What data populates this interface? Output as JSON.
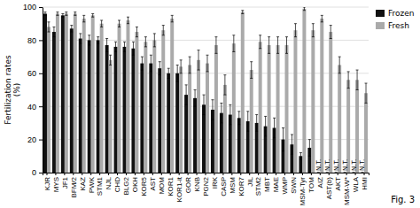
{
  "chart_data": {
    "type": "bar",
    "ylabel": "Fertilization rates\n(%)",
    "categories": [
      "KJR",
      "MYS",
      "JF1",
      "BFM/2",
      "KAZ",
      "PWK",
      "STM1",
      "NJL",
      "CHD",
      "BLG2",
      "OKH",
      "KOR5",
      "AST",
      "MOM",
      "KOR1",
      "KOR1-it",
      "GOR",
      "KNB",
      "PGN2",
      "IRK",
      "CASP",
      "MSM",
      "KOR7",
      "JIL",
      "STM2",
      "MBT",
      "MAE",
      "WMP",
      "SWN",
      "MSM-Tyr",
      "TOM",
      "AIZ",
      "AST(b)",
      "AKT",
      "MSM-W*",
      "WLA",
      "HMI"
    ],
    "series": [
      {
        "name": "Frozen",
        "color": "#111111",
        "values": [
          96,
          85,
          95,
          87,
          81,
          80,
          80,
          77,
          76,
          76,
          75,
          66,
          66,
          63,
          60,
          60,
          47,
          45,
          41,
          38,
          36,
          35,
          33,
          31,
          30,
          28,
          27,
          20,
          17,
          10,
          15,
          0,
          0,
          0,
          0,
          0,
          0
        ],
        "errors": [
          1,
          3,
          1,
          2,
          3,
          3,
          2,
          4,
          3,
          3,
          4,
          4,
          5,
          4,
          3,
          5,
          6,
          5,
          6,
          6,
          6,
          6,
          4,
          6,
          5,
          6,
          6,
          7,
          6,
          2,
          5,
          0,
          0,
          0,
          0,
          0,
          0
        ]
      },
      {
        "name": "Fresh",
        "color": "#aaaaaa",
        "values": [
          88,
          96,
          96,
          96,
          93,
          95,
          90,
          68,
          90,
          92,
          85,
          79,
          80,
          86,
          93,
          64,
          65,
          68,
          66,
          77,
          53,
          78,
          97,
          62,
          79,
          77,
          77,
          77,
          86,
          99,
          86,
          93,
          85,
          65,
          56,
          56,
          48
        ],
        "errors": [
          3,
          1,
          1,
          1,
          2,
          1,
          2,
          3,
          2,
          2,
          3,
          3,
          4,
          3,
          2,
          4,
          5,
          6,
          5,
          5,
          6,
          5,
          1,
          5,
          4,
          5,
          5,
          5,
          4,
          1,
          4,
          2,
          4,
          5,
          5,
          6,
          6
        ]
      }
    ],
    "annotations": [
      {
        "text": "N.T.",
        "category": "AIZ",
        "series": "Frozen"
      },
      {
        "text": "N.T.",
        "category": "AST(b)",
        "series": "Frozen"
      },
      {
        "text": "N.T.",
        "category": "AKT",
        "series": "Frozen"
      },
      {
        "text": "N.T.",
        "category": "MSM-W*",
        "series": "Frozen"
      },
      {
        "text": "N.T.",
        "category": "WLA",
        "series": "Frozen"
      },
      {
        "text": "N.T.",
        "category": "HMI",
        "series": "Frozen"
      }
    ],
    "caption": "Fig. 3",
    "ylim": [
      0,
      100
    ],
    "yticks": [
      0,
      20,
      40,
      60,
      80,
      100
    ],
    "grid": true,
    "legend": "upper right"
  }
}
